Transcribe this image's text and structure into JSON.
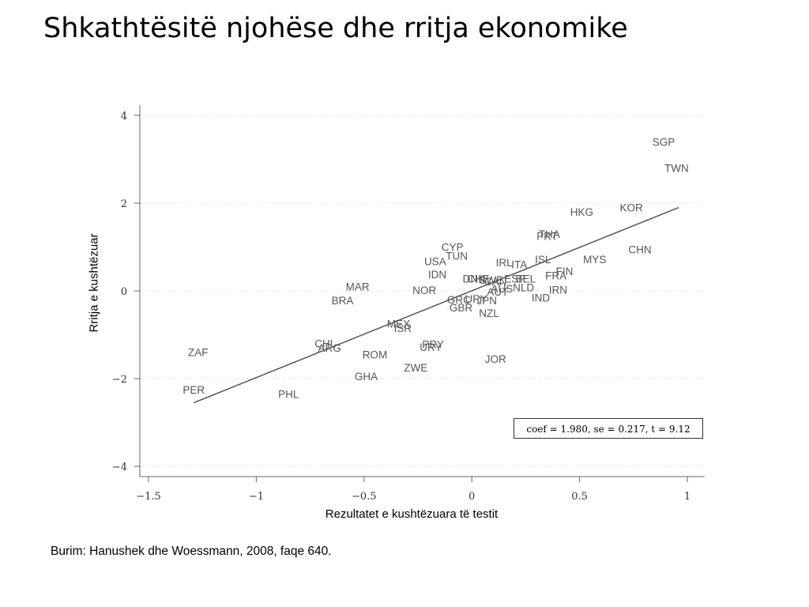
{
  "title": "Shkathtësitë njohëse dhe rritja ekonomike",
  "source": "Burim: Hanushek dhe Woessmann, 2008, faqe 640.",
  "chart_data": {
    "type": "scatter",
    "xlabel": "Rezultatet e kushtëzuara të testit",
    "ylabel": "Rritja e kushtëzuar",
    "xlim": [
      -1.5,
      1.0
    ],
    "ylim": [
      -4,
      4
    ],
    "xticks": [
      -1.5,
      -1,
      -0.5,
      0,
      0.5,
      1
    ],
    "xtick_labels": [
      "−1.5",
      "−1",
      "−0.5",
      "0",
      "0.5",
      "1"
    ],
    "yticks": [
      -4,
      -2,
      0,
      2,
      4
    ],
    "ytick_labels": [
      "−4",
      "−2",
      "0",
      "2",
      "4"
    ],
    "grid": "horizontal dotted",
    "annotation": "coef = 1.980, se = 0.217, t = 9.12",
    "fit_line": {
      "x": [
        -1.29,
        0.96
      ],
      "y": [
        -2.55,
        1.9
      ]
    },
    "points": [
      {
        "label": "SGP",
        "x": 0.89,
        "y": 3.4
      },
      {
        "label": "TWN",
        "x": 0.95,
        "y": 2.8
      },
      {
        "label": "KOR",
        "x": 0.74,
        "y": 1.9
      },
      {
        "label": "HKG",
        "x": 0.51,
        "y": 1.8
      },
      {
        "label": "CHN",
        "x": 0.78,
        "y": 0.95
      },
      {
        "label": "MYS",
        "x": 0.57,
        "y": 0.72
      },
      {
        "label": "THA",
        "x": 0.36,
        "y": 1.3
      },
      {
        "label": "PRT",
        "x": 0.35,
        "y": 1.25
      },
      {
        "label": "ISL",
        "x": 0.33,
        "y": 0.72
      },
      {
        "label": "IRL",
        "x": 0.15,
        "y": 0.65
      },
      {
        "label": "ITA",
        "x": 0.22,
        "y": 0.6
      },
      {
        "label": "FIN",
        "x": 0.43,
        "y": 0.45
      },
      {
        "label": "FRA",
        "x": 0.39,
        "y": 0.35
      },
      {
        "label": "ESP",
        "x": 0.2,
        "y": 0.28
      },
      {
        "label": "BEL",
        "x": 0.25,
        "y": 0.28
      },
      {
        "label": "IRN",
        "x": 0.4,
        "y": 0.03
      },
      {
        "label": "IND",
        "x": 0.32,
        "y": -0.15
      },
      {
        "label": "NLD",
        "x": 0.24,
        "y": 0.08
      },
      {
        "label": "DNK",
        "x": 0.01,
        "y": 0.28
      },
      {
        "label": "CHE",
        "x": 0.03,
        "y": 0.28
      },
      {
        "label": "SWE",
        "x": 0.09,
        "y": 0.25
      },
      {
        "label": "CAN",
        "x": 0.11,
        "y": 0.22
      },
      {
        "label": "AUS",
        "x": 0.14,
        "y": 0.05
      },
      {
        "label": "AUT",
        "x": 0.12,
        "y": -0.02
      },
      {
        "label": "JPN",
        "x": 0.07,
        "y": -0.22
      },
      {
        "label": "GRC",
        "x": -0.06,
        "y": -0.2
      },
      {
        "label": "URY",
        "x": 0.02,
        "y": -0.18
      },
      {
        "label": "GBR",
        "x": -0.05,
        "y": -0.38
      },
      {
        "label": "NZL",
        "x": 0.08,
        "y": -0.5
      },
      {
        "label": "CYP",
        "x": -0.09,
        "y": 1.0
      },
      {
        "label": "TUN",
        "x": -0.07,
        "y": 0.8
      },
      {
        "label": "USA",
        "x": -0.17,
        "y": 0.68
      },
      {
        "label": "IDN",
        "x": -0.16,
        "y": 0.38
      },
      {
        "label": "NOR",
        "x": -0.22,
        "y": 0.02
      },
      {
        "label": "MAR",
        "x": -0.53,
        "y": 0.1
      },
      {
        "label": "BRA",
        "x": -0.6,
        "y": -0.22
      },
      {
        "label": "MEX",
        "x": -0.34,
        "y": -0.75
      },
      {
        "label": "ISR",
        "x": -0.32,
        "y": -0.85
      },
      {
        "label": "CHL",
        "x": -0.68,
        "y": -1.2
      },
      {
        "label": "ARG",
        "x": -0.66,
        "y": -1.3
      },
      {
        "label": "URY",
        "x": -0.19,
        "y": -1.28
      },
      {
        "label": "PRY",
        "x": -0.18,
        "y": -1.22
      },
      {
        "label": "ROM",
        "x": -0.45,
        "y": -1.45
      },
      {
        "label": "JOR",
        "x": 0.11,
        "y": -1.55
      },
      {
        "label": "ZWE",
        "x": -0.26,
        "y": -1.75
      },
      {
        "label": "ZAF",
        "x": -1.27,
        "y": -1.4
      },
      {
        "label": "GHA",
        "x": -0.49,
        "y": -1.95
      },
      {
        "label": "PER",
        "x": -1.29,
        "y": -2.25
      },
      {
        "label": "PHL",
        "x": -0.85,
        "y": -2.35
      }
    ]
  }
}
